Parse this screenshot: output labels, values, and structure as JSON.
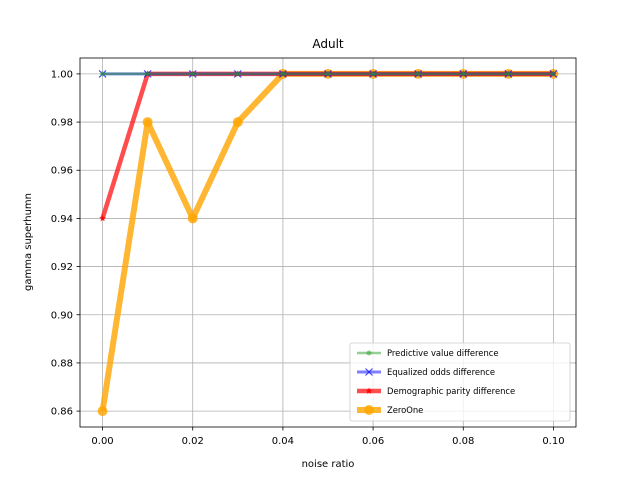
{
  "chart_data": {
    "type": "line",
    "title": "Adult",
    "xlabel": "noise ratio",
    "ylabel": "gamma superhumn",
    "x": [
      0.0,
      0.01,
      0.02,
      0.03,
      0.04,
      0.05,
      0.06,
      0.07,
      0.08,
      0.09,
      0.1
    ],
    "xlim": [
      -0.005,
      0.105
    ],
    "ylim": [
      0.8534,
      1.0066
    ],
    "xticks": [
      0.0,
      0.02,
      0.04,
      0.06,
      0.08,
      0.1
    ],
    "xtick_labels": [
      "0.00",
      "0.02",
      "0.04",
      "0.06",
      "0.08",
      "0.10"
    ],
    "yticks": [
      0.86,
      0.88,
      0.9,
      0.92,
      0.94,
      0.96,
      0.98,
      1.0
    ],
    "ytick_labels": [
      "0.86",
      "0.88",
      "0.90",
      "0.92",
      "0.94",
      "0.96",
      "0.98",
      "1.00"
    ],
    "grid": true,
    "legend_position": "lower-right",
    "series": [
      {
        "name": "Predictive value difference",
        "color": "#2ca02c",
        "marker": "point",
        "values": [
          1.0,
          1.0,
          1.0,
          1.0,
          1.0,
          1.0,
          1.0,
          1.0,
          1.0,
          1.0,
          1.0
        ]
      },
      {
        "name": "Equalized odds difference",
        "color": "#0000ff",
        "marker": "x",
        "values": [
          1.0,
          1.0,
          1.0,
          1.0,
          1.0,
          1.0,
          1.0,
          1.0,
          1.0,
          1.0,
          1.0
        ]
      },
      {
        "name": "Demographic parity difference",
        "color": "#ff0000",
        "marker": "star",
        "values": [
          0.94,
          1.0,
          1.0,
          1.0,
          1.0,
          1.0,
          1.0,
          1.0,
          1.0,
          1.0,
          1.0
        ]
      },
      {
        "name": "ZeroOne",
        "color": "#ffa500",
        "marker": "circle",
        "values": [
          0.86,
          0.98,
          0.94,
          0.98,
          1.0,
          1.0,
          1.0,
          1.0,
          1.0,
          1.0,
          1.0
        ]
      }
    ]
  }
}
